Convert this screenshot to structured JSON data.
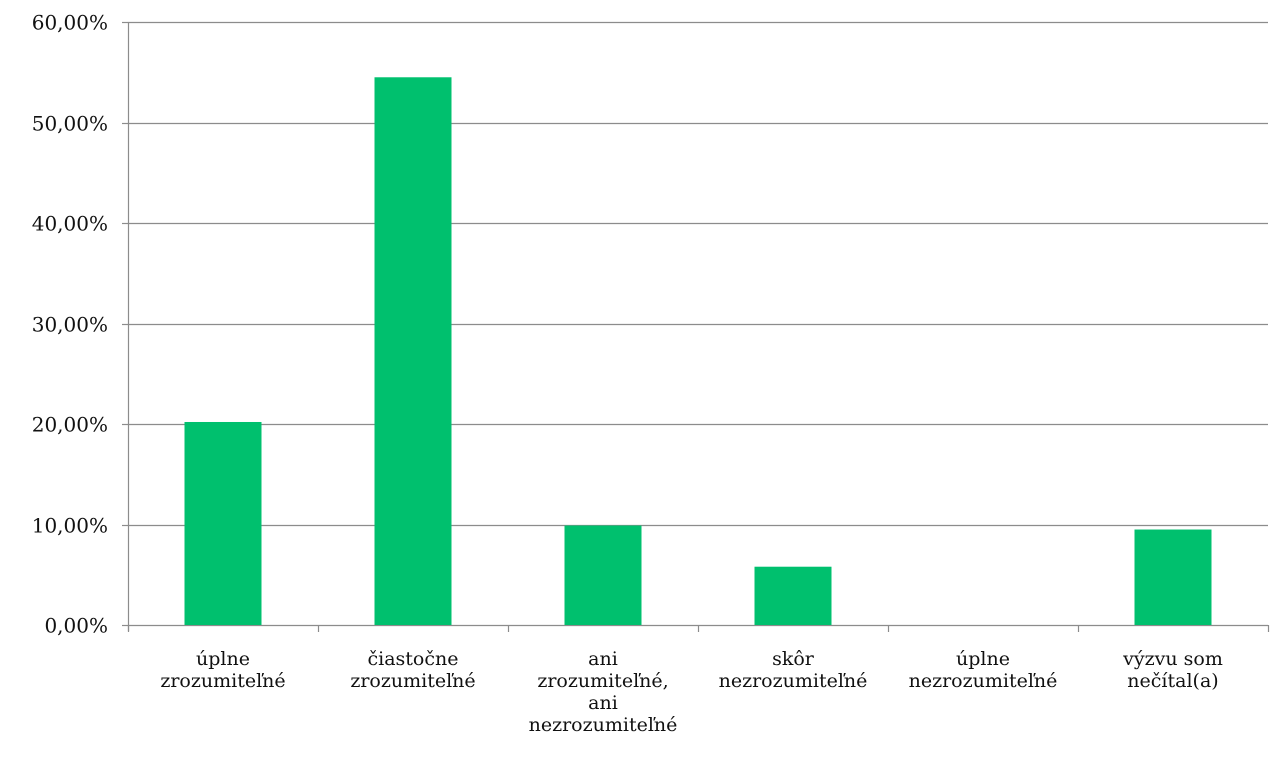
{
  "chart_data": {
    "type": "bar",
    "title": "",
    "xlabel": "",
    "ylabel": "",
    "ylim": [
      0,
      60
    ],
    "grid": true,
    "legend": "none",
    "bar_color": "#00c06e",
    "yticks": [
      {
        "value": 0,
        "label": "0,00%"
      },
      {
        "value": 10,
        "label": "10,00%"
      },
      {
        "value": 20,
        "label": "20,00%"
      },
      {
        "value": 30,
        "label": "30,00%"
      },
      {
        "value": 40,
        "label": "40,00%"
      },
      {
        "value": 50,
        "label": "50,00%"
      },
      {
        "value": 60,
        "label": "60,00%"
      }
    ],
    "categories": [
      [
        "úplne",
        "zrozumiteľné"
      ],
      [
        "čiastočne",
        "zrozumiteľné"
      ],
      [
        "ani",
        "zrozumiteľné,",
        "ani",
        "nezrozumiteľné"
      ],
      [
        "skôr",
        "nezrozumiteľné"
      ],
      [
        "úplne",
        "nezrozumiteľné"
      ],
      [
        "výzvu som",
        "nečítal(a)"
      ]
    ],
    "values": [
      20.2,
      54.5,
      9.9,
      5.8,
      0.0,
      9.5
    ]
  }
}
